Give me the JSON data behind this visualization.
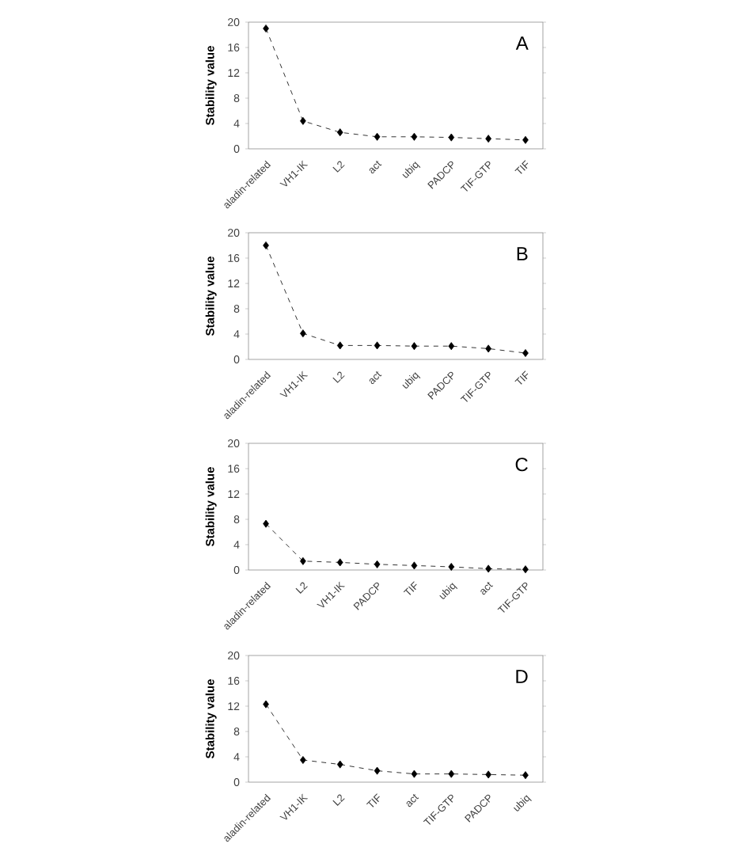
{
  "chart_data": [
    {
      "type": "line",
      "title": "A",
      "ylabel": "Stability value",
      "categories": [
        "aladin-related",
        "VH1-IK",
        "L2",
        "act",
        "ubiq",
        "PADCP",
        "TIF-GTP",
        "TIF"
      ],
      "values": [
        19,
        4.4,
        2.6,
        1.9,
        1.9,
        1.8,
        1.6,
        1.4
      ],
      "color": "#000000",
      "marker": "diamond",
      "line_style": "dashed",
      "ylim": [
        0,
        20
      ],
      "yticks": [
        0,
        4,
        8,
        12,
        16,
        20
      ],
      "grid": false
    },
    {
      "type": "line",
      "title": "B",
      "ylabel": "Stability value",
      "categories": [
        "aladin-related",
        "VH1-IK",
        "L2",
        "act",
        "ubiq",
        "PADCP",
        "TIF-GTP",
        "TIF"
      ],
      "values": [
        18,
        4.1,
        2.2,
        2.2,
        2.1,
        2.1,
        1.7,
        1.0
      ],
      "color": "#000000",
      "marker": "diamond",
      "line_style": "dashed",
      "ylim": [
        0,
        20
      ],
      "yticks": [
        0,
        4,
        8,
        12,
        16,
        20
      ],
      "grid": false
    },
    {
      "type": "line",
      "title": "C",
      "ylabel": "Stability value",
      "categories": [
        "aladin-related",
        "L2",
        "VH1-IK",
        "PADCP",
        "TIF",
        "ubiq",
        "act",
        "TIF-GTP"
      ],
      "values": [
        7.3,
        1.4,
        1.2,
        0.9,
        0.7,
        0.5,
        0.2,
        0.1
      ],
      "color": "#000000",
      "marker": "diamond",
      "line_style": "dashed",
      "ylim": [
        0,
        20
      ],
      "yticks": [
        0,
        4,
        8,
        12,
        16,
        20
      ],
      "grid": false
    },
    {
      "type": "line",
      "title": "D",
      "ylabel": "Stability value",
      "categories": [
        "aladin-related",
        "VH1-IK",
        "L2",
        "TIF",
        "act",
        "TIF-GTP",
        "PADCP",
        "ubiq"
      ],
      "values": [
        12.3,
        3.5,
        2.8,
        1.8,
        1.3,
        1.3,
        1.2,
        1.1
      ],
      "color": "#000000",
      "marker": "diamond",
      "line_style": "dashed",
      "ylim": [
        0,
        20
      ],
      "yticks": [
        0,
        4,
        8,
        12,
        16,
        20
      ],
      "grid": false
    }
  ]
}
